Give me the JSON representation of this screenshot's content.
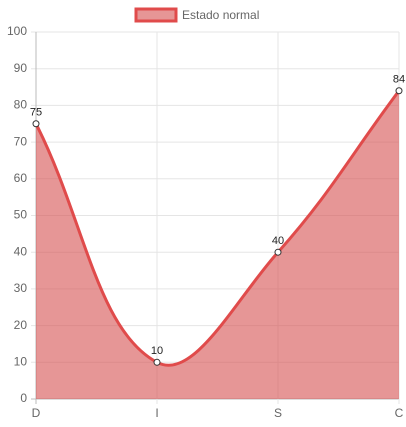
{
  "chart_data": {
    "type": "line",
    "categories": [
      "D",
      "I",
      "S",
      "C"
    ],
    "series": [
      {
        "name": "Estado normal",
        "color": "#e04b4b",
        "fill": "rgba(214,80,80,0.6)",
        "values": [
          75,
          10,
          40,
          84
        ]
      }
    ],
    "ylim": [
      0,
      100
    ],
    "yticks": [
      0,
      10,
      20,
      30,
      40,
      50,
      60,
      70,
      80,
      90,
      100
    ],
    "grid": true,
    "legend": "top",
    "data_labels": true
  }
}
